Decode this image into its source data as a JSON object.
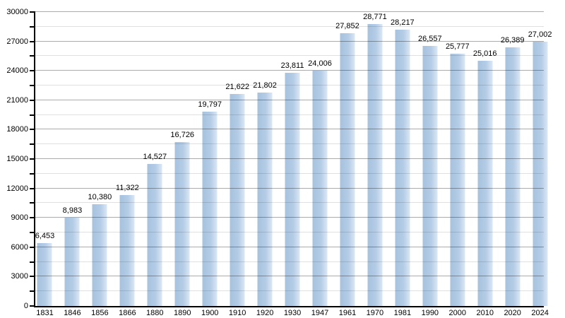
{
  "chart_data": {
    "type": "bar",
    "title": "",
    "xlabel": "",
    "ylabel": "",
    "categories": [
      "1831",
      "1846",
      "1856",
      "1866",
      "1880",
      "1890",
      "1900",
      "1910",
      "1920",
      "1930",
      "1947",
      "1961",
      "1970",
      "1981",
      "1990",
      "2000",
      "2010",
      "2020",
      "2024"
    ],
    "values": [
      6453,
      8983,
      10380,
      11322,
      14527,
      16726,
      19797,
      21622,
      21802,
      23811,
      24006,
      27852,
      28771,
      28217,
      26557,
      25777,
      25016,
      26389,
      27002
    ],
    "value_labels": [
      "6,453",
      "8,983",
      "10,380",
      "11,322",
      "14,527",
      "16,726",
      "19,797",
      "21,622",
      "21,802",
      "23,811",
      "24,006",
      "27,852",
      "28,771",
      "28,217",
      "26,557",
      "25,777",
      "25,016",
      "26,389",
      "27,002"
    ],
    "ylim": [
      0,
      30000
    ],
    "ytick_step": 3000,
    "minor_tick_step": 1500,
    "ytick_labels": [
      "0",
      "3000",
      "6000",
      "9000",
      "12000",
      "15000",
      "18000",
      "21000",
      "24000",
      "27000",
      "30000"
    ],
    "grid": "on",
    "legend": "none",
    "bar_color_left": "#a6c2de",
    "bar_color_mid": "#b4cce6",
    "bar_color_right": "#dbe7f4",
    "grid_major_color": "rgba(0,0,0,0.33)",
    "grid_minor_color": "rgba(0,0,0,0.12)",
    "axis_color": "#000000"
  }
}
